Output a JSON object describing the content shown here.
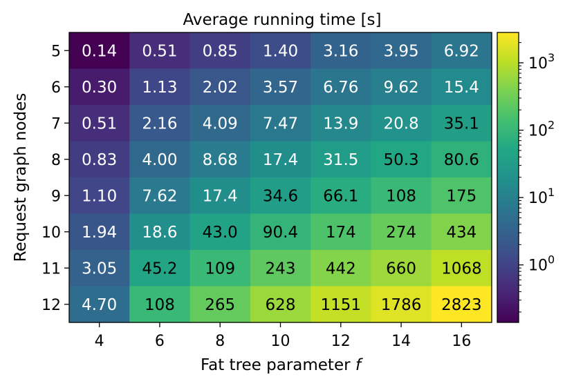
{
  "chart_data": {
    "type": "heatmap",
    "title": "Average running time [s]",
    "xlabel": "Fat tree parameter ",
    "xlabel_italic": "f",
    "ylabel": "Request graph nodes",
    "x_categories": [
      "4",
      "6",
      "8",
      "10",
      "12",
      "14",
      "16"
    ],
    "y_categories": [
      "5",
      "6",
      "7",
      "8",
      "9",
      "10",
      "11",
      "12"
    ],
    "values": [
      [
        0.14,
        0.51,
        0.85,
        1.4,
        3.16,
        3.95,
        6.92
      ],
      [
        0.3,
        1.13,
        2.02,
        3.57,
        6.76,
        9.62,
        15.4
      ],
      [
        0.51,
        2.16,
        4.09,
        7.47,
        13.9,
        20.8,
        35.1
      ],
      [
        0.83,
        4.0,
        8.68,
        17.4,
        31.5,
        50.3,
        80.6
      ],
      [
        1.1,
        7.62,
        17.4,
        34.6,
        66.1,
        108,
        175
      ],
      [
        1.94,
        18.6,
        43.0,
        90.4,
        174,
        274,
        434
      ],
      [
        3.05,
        45.2,
        109,
        243,
        442,
        660,
        1068
      ],
      [
        4.7,
        108,
        265,
        628,
        1151,
        1786,
        2823
      ]
    ],
    "labels": [
      [
        "0.14",
        "0.51",
        "0.85",
        "1.40",
        "3.16",
        "3.95",
        "6.92"
      ],
      [
        "0.30",
        "1.13",
        "2.02",
        "3.57",
        "6.76",
        "9.62",
        "15.4"
      ],
      [
        "0.51",
        "2.16",
        "4.09",
        "7.47",
        "13.9",
        "20.8",
        "35.1"
      ],
      [
        "0.83",
        "4.00",
        "8.68",
        "17.4",
        "31.5",
        "50.3",
        "80.6"
      ],
      [
        "1.10",
        "7.62",
        "17.4",
        "34.6",
        "66.1",
        "108",
        "175"
      ],
      [
        "1.94",
        "18.6",
        "43.0",
        "90.4",
        "174",
        "274",
        "434"
      ],
      [
        "3.05",
        "45.2",
        "109",
        "243",
        "442",
        "660",
        "1068"
      ],
      [
        "4.70",
        "108",
        "265",
        "628",
        "1151",
        "1786",
        "2823"
      ]
    ],
    "scale": "log",
    "colormap": "viridis",
    "vmin": 0.14,
    "vmax": 2823,
    "colorbar": {
      "ticks": [
        {
          "value": 1,
          "base": "10",
          "exp": "0"
        },
        {
          "value": 10,
          "base": "10",
          "exp": "1"
        },
        {
          "value": 100,
          "base": "10",
          "exp": "2"
        },
        {
          "value": 1000,
          "base": "10",
          "exp": "3"
        }
      ]
    }
  }
}
